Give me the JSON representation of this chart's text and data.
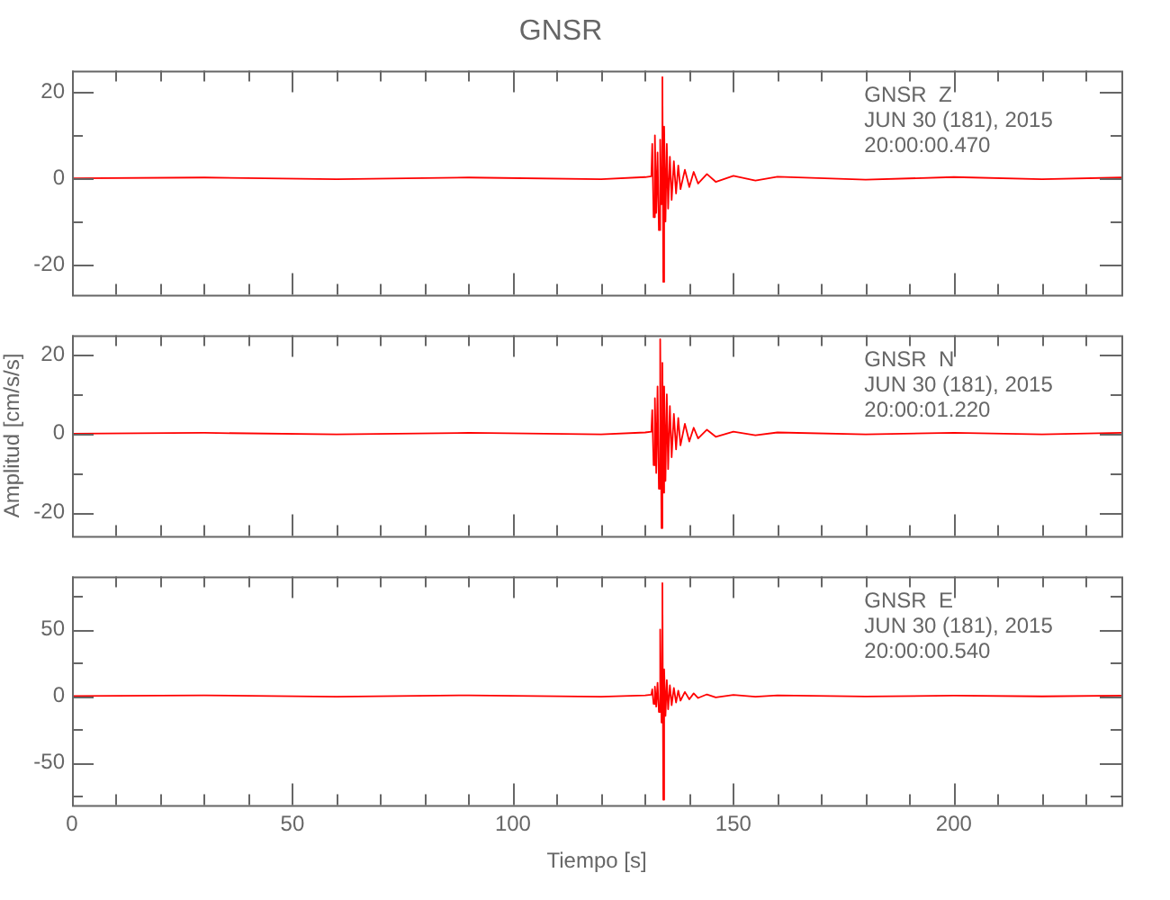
{
  "chart_data": [
    {
      "type": "line",
      "title": "GNSR",
      "annotations": [
        "GNSR  Z",
        "JUN 30 (181), 2015",
        "20:00:00.470"
      ],
      "tick_labels": "y",
      "x": [
        0,
        30,
        60,
        90,
        120,
        130,
        131.4,
        131.6,
        131.9,
        132.2,
        132.5,
        132.8,
        133.1,
        133.4,
        133.7,
        133.9,
        134.1,
        134.3,
        134.6,
        134.9,
        135.2,
        135.6,
        136,
        136.5,
        137,
        137.5,
        138,
        139,
        140,
        141,
        142,
        144,
        146,
        150,
        155,
        160,
        180,
        200,
        220,
        238
      ],
      "series": [
        {
          "color": "#ff0000",
          "values": [
            0,
            0.2,
            -0.2,
            0.2,
            -0.2,
            0.3,
            0.5,
            8,
            -9,
            10,
            -8,
            6,
            -12,
            9,
            -6,
            23.5,
            -24,
            12,
            -10,
            8,
            -7,
            5,
            -5,
            4,
            -3.5,
            3,
            -2.5,
            2,
            -2,
            1.5,
            -1.2,
            1,
            -0.8,
            0.6,
            -0.5,
            0.4,
            -0.3,
            0.3,
            -0.2,
            0.2
          ]
        }
      ],
      "xlim": [
        0,
        238
      ],
      "xticks": [
        {
          "value": 0,
          "label": null
        },
        {
          "value": 10,
          "label": null
        },
        {
          "value": 20,
          "label": null
        },
        {
          "value": 30,
          "label": null
        },
        {
          "value": 40,
          "label": null
        },
        {
          "value": 50,
          "label": null
        },
        {
          "value": 60,
          "label": null
        },
        {
          "value": 70,
          "label": null
        },
        {
          "value": 80,
          "label": null
        },
        {
          "value": 90,
          "label": null
        },
        {
          "value": 100,
          "label": null
        },
        {
          "value": 110,
          "label": null
        },
        {
          "value": 120,
          "label": null
        },
        {
          "value": 130,
          "label": null
        },
        {
          "value": 140,
          "label": null
        },
        {
          "value": 150,
          "label": null
        },
        {
          "value": 160,
          "label": null
        },
        {
          "value": 170,
          "label": null
        },
        {
          "value": 180,
          "label": null
        },
        {
          "value": 190,
          "label": null
        },
        {
          "value": 200,
          "label": null
        },
        {
          "value": 210,
          "label": null
        },
        {
          "value": 220,
          "label": null
        },
        {
          "value": 230,
          "label": null
        }
      ],
      "ylim": [
        -27,
        25
      ],
      "yticks": [
        -20,
        {
          "value": -10,
          "label": null
        },
        0,
        {
          "value": 10,
          "label": null
        },
        20
      ]
    },
    {
      "type": "line",
      "ylabel": "Amplitud [cm/s/s]",
      "annotations": [
        "GNSR  N",
        "JUN 30 (181), 2015",
        "20:00:01.220"
      ],
      "tick_labels": "y",
      "x": [
        0,
        30,
        60,
        90,
        120,
        130,
        131.4,
        131.6,
        131.9,
        132.2,
        132.5,
        132.8,
        133.1,
        133.4,
        133.7,
        133.9,
        134.1,
        134.3,
        134.6,
        134.9,
        135.2,
        135.6,
        136,
        136.5,
        137,
        137.5,
        138,
        139,
        140,
        141,
        142,
        144,
        146,
        150,
        155,
        160,
        180,
        200,
        220,
        238
      ],
      "series": [
        {
          "color": "#ff0000",
          "values": [
            0,
            0.2,
            -0.2,
            0.2,
            -0.2,
            0.3,
            0.5,
            6,
            -8,
            9,
            -10,
            12,
            -14,
            24,
            -24,
            18,
            -15,
            12,
            -12,
            10,
            -9,
            7,
            -6,
            5,
            -4,
            4,
            -3,
            2.5,
            -2,
            1.5,
            -1.2,
            1,
            -0.8,
            0.5,
            -0.4,
            0.3,
            -0.2,
            0.2,
            -0.2,
            0.2
          ]
        }
      ],
      "xlim": [
        0,
        238
      ],
      "xticks": [
        {
          "value": 0,
          "label": null
        },
        {
          "value": 10,
          "label": null
        },
        {
          "value": 20,
          "label": null
        },
        {
          "value": 30,
          "label": null
        },
        {
          "value": 40,
          "label": null
        },
        {
          "value": 50,
          "label": null
        },
        {
          "value": 60,
          "label": null
        },
        {
          "value": 70,
          "label": null
        },
        {
          "value": 80,
          "label": null
        },
        {
          "value": 90,
          "label": null
        },
        {
          "value": 100,
          "label": null
        },
        {
          "value": 110,
          "label": null
        },
        {
          "value": 120,
          "label": null
        },
        {
          "value": 130,
          "label": null
        },
        {
          "value": 140,
          "label": null
        },
        {
          "value": 150,
          "label": null
        },
        {
          "value": 160,
          "label": null
        },
        {
          "value": 170,
          "label": null
        },
        {
          "value": 180,
          "label": null
        },
        {
          "value": 190,
          "label": null
        },
        {
          "value": 200,
          "label": null
        },
        {
          "value": 210,
          "label": null
        },
        {
          "value": 220,
          "label": null
        },
        {
          "value": 230,
          "label": null
        }
      ],
      "ylim": [
        -26,
        25
      ],
      "yticks": [
        -20,
        {
          "value": -10,
          "label": null
        },
        0,
        {
          "value": 10,
          "label": null
        },
        20
      ]
    },
    {
      "type": "line",
      "xlabel": "Tiempo [s]",
      "annotations": [
        "GNSR  E",
        "JUN 30 (181), 2015",
        "20:00:00.540"
      ],
      "x": [
        0,
        30,
        60,
        90,
        120,
        130,
        131.4,
        131.6,
        131.9,
        132.2,
        132.5,
        132.8,
        133.1,
        133.4,
        133.7,
        133.9,
        134.1,
        134.3,
        134.6,
        134.9,
        135.2,
        135.6,
        136,
        136.5,
        137,
        137.5,
        138,
        139,
        140,
        141,
        142,
        144,
        146,
        150,
        155,
        160,
        180,
        200,
        220,
        238
      ],
      "series": [
        {
          "color": "#ff0000",
          "values": [
            0,
            0.5,
            -0.5,
            0.5,
            -0.5,
            0.5,
            1,
            5,
            -6,
            7,
            -8,
            10,
            -12,
            50,
            -20,
            85,
            -78,
            20,
            -15,
            12,
            -10,
            8,
            -7,
            6,
            -5,
            4,
            -3.5,
            3,
            -2.5,
            2,
            -1.5,
            1.2,
            -1,
            0.8,
            -0.6,
            0.5,
            -0.4,
            0.3,
            -0.3,
            0.3
          ]
        }
      ],
      "xlim": [
        0,
        238
      ],
      "xticks": [
        0,
        {
          "value": 10,
          "label": null
        },
        {
          "value": 20,
          "label": null
        },
        {
          "value": 30,
          "label": null
        },
        {
          "value": 40,
          "label": null
        },
        50,
        {
          "value": 60,
          "label": null
        },
        {
          "value": 70,
          "label": null
        },
        {
          "value": 80,
          "label": null
        },
        {
          "value": 90,
          "label": null
        },
        100,
        {
          "value": 110,
          "label": null
        },
        {
          "value": 120,
          "label": null
        },
        {
          "value": 130,
          "label": null
        },
        {
          "value": 140,
          "label": null
        },
        150,
        {
          "value": 160,
          "label": null
        },
        {
          "value": 170,
          "label": null
        },
        {
          "value": 180,
          "label": null
        },
        {
          "value": 190,
          "label": null
        },
        200,
        {
          "value": 210,
          "label": null
        },
        {
          "value": 220,
          "label": null
        },
        {
          "value": 230,
          "label": null
        }
      ],
      "ylim": [
        -82,
        90
      ],
      "yticks": [
        {
          "value": -75,
          "label": null
        },
        -50,
        {
          "value": -25,
          "label": null
        },
        0,
        {
          "value": 25,
          "label": null
        },
        50,
        {
          "value": 75,
          "label": null
        }
      ]
    }
  ]
}
